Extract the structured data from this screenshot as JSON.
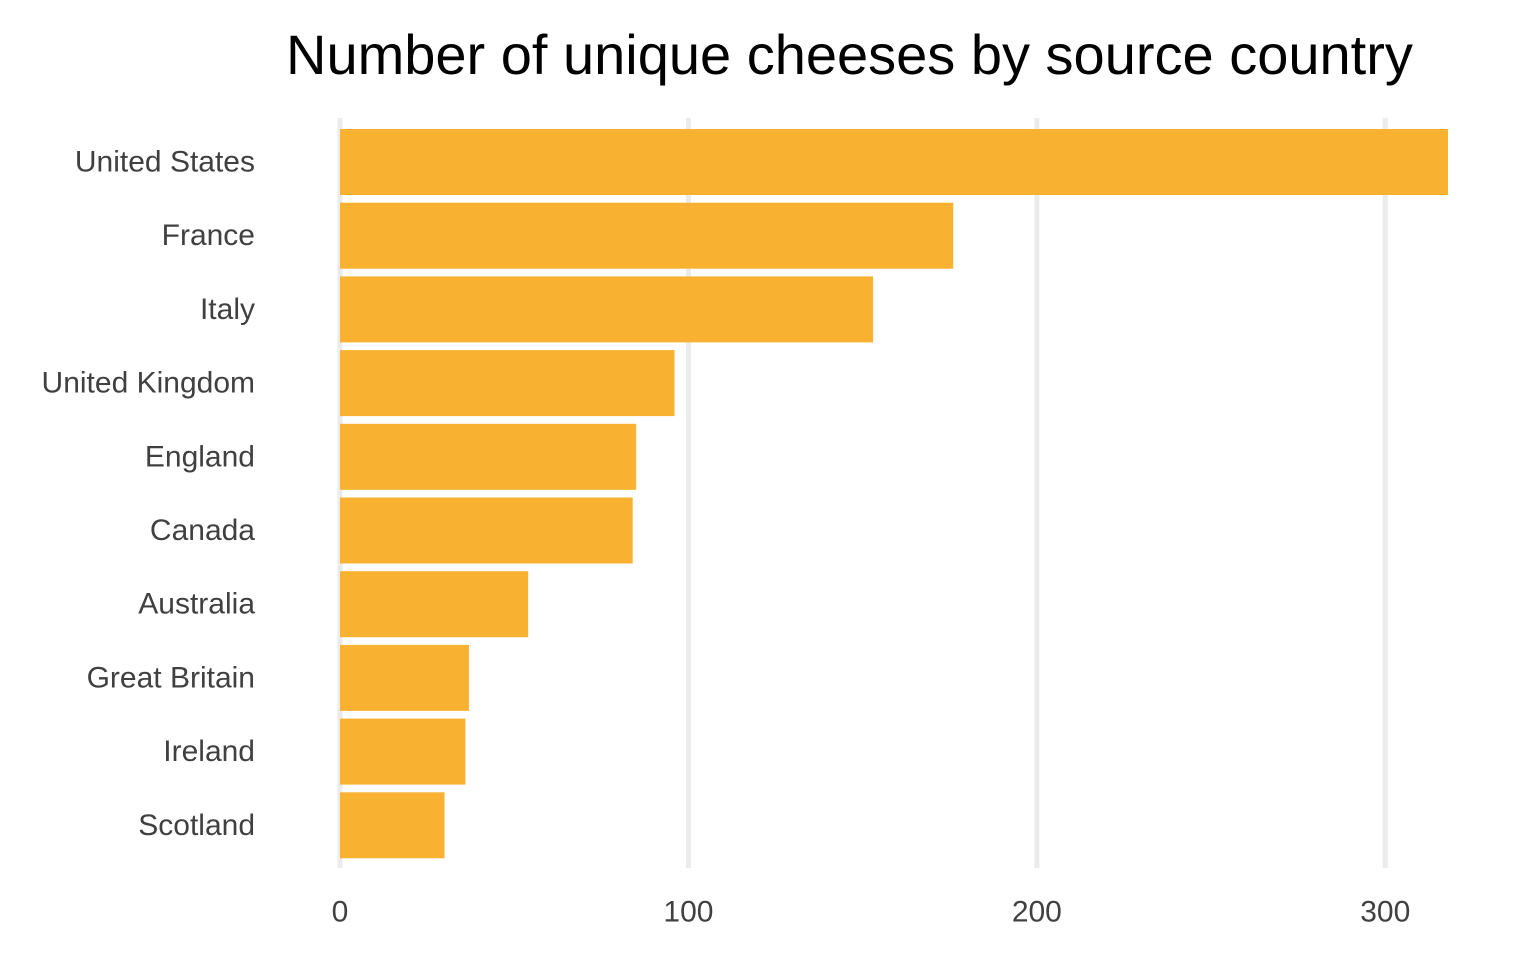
{
  "chart_data": {
    "type": "bar",
    "orientation": "horizontal",
    "title": "Number of unique cheeses by source country",
    "xlabel": "",
    "ylabel": "",
    "categories": [
      "United States",
      "France",
      "Italy",
      "United Kingdom",
      "England",
      "Canada",
      "Australia",
      "Great Britain",
      "Ireland",
      "Scotland"
    ],
    "values": [
      318,
      176,
      153,
      96,
      85,
      84,
      54,
      37,
      36,
      30
    ],
    "xlim": [
      0,
      318
    ],
    "x_ticks": [
      0,
      100,
      200,
      300
    ],
    "x_tick_labels": [
      "0",
      "100",
      "200",
      "300"
    ],
    "bar_color": "#F8B131",
    "grid": "vertical major",
    "gridline_color": "#EBEBEB",
    "legend": "none"
  }
}
